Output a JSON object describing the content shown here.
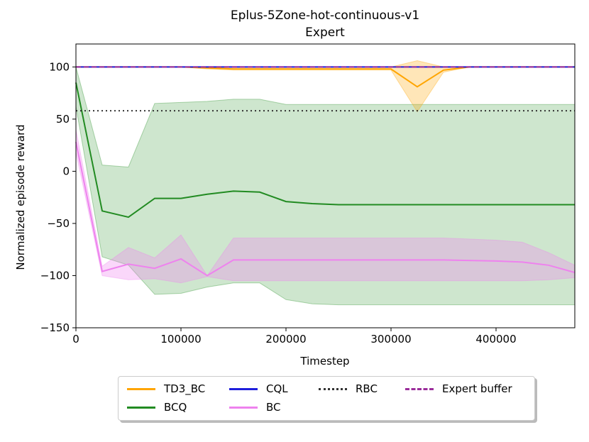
{
  "chart_data": {
    "type": "line",
    "title": "Eplus-5Zone-hot-continuous-v1",
    "subtitle": "Expert",
    "xlabel": "Timestep",
    "ylabel": "Normalized episode reward",
    "xlim": [
      0,
      475000
    ],
    "ylim": [
      -150,
      122
    ],
    "xticks": [
      0,
      100000,
      200000,
      300000,
      400000
    ],
    "xtick_labels": [
      "0",
      "100000",
      "200000",
      "300000",
      "400000"
    ],
    "yticks": [
      -150,
      -100,
      -50,
      0,
      50,
      100
    ],
    "ytick_labels": [
      "−150",
      "−100",
      "−50",
      "0",
      "50",
      "100"
    ],
    "grid": false,
    "legend_position": "bottom-center",
    "series": [
      {
        "name": "TD3_BC",
        "color": "#ffa500",
        "style": "solid",
        "x": [
          0,
          25000,
          50000,
          75000,
          100000,
          125000,
          150000,
          175000,
          200000,
          225000,
          250000,
          275000,
          300000,
          325000,
          350000,
          375000,
          400000,
          425000,
          450000,
          475000
        ],
        "y": [
          100,
          100,
          100,
          100,
          100,
          99,
          98,
          98,
          98,
          98,
          98,
          98,
          98,
          81,
          97,
          100,
          100,
          100,
          100,
          100
        ],
        "band_lower": [
          100,
          100,
          100,
          100,
          100,
          98,
          97,
          97,
          97,
          97,
          97,
          97,
          97,
          57,
          95,
          100,
          100,
          100,
          100,
          100
        ],
        "band_upper": [
          100,
          100,
          100,
          100,
          100,
          100,
          100,
          100,
          100,
          100,
          100,
          100,
          100,
          106,
          100,
          100,
          100,
          100,
          100,
          100
        ]
      },
      {
        "name": "CQL",
        "color": "#1f1fdc",
        "style": "solid",
        "x": [
          0,
          475000
        ],
        "y": [
          100,
          100
        ]
      },
      {
        "name": "RBC",
        "color": "#333333",
        "style": "dotted",
        "x": [
          0,
          475000
        ],
        "y": [
          58,
          58
        ]
      },
      {
        "name": "Expert buffer",
        "color": "#9b2d9b",
        "style": "dashed",
        "x": [
          0,
          475000
        ],
        "y": [
          100,
          100
        ]
      },
      {
        "name": "BCQ",
        "color": "#228b22",
        "style": "solid",
        "x": [
          0,
          25000,
          50000,
          75000,
          100000,
          125000,
          150000,
          175000,
          200000,
          225000,
          250000,
          300000,
          350000,
          400000,
          475000
        ],
        "y": [
          85,
          -38,
          -44,
          -26,
          -26,
          -22,
          -19,
          -20,
          -29,
          -31,
          -32,
          -32,
          -32,
          -32,
          -32
        ],
        "band_lower": [
          62,
          -82,
          -90,
          -118,
          -117,
          -111,
          -107,
          -107,
          -123,
          -127,
          -128,
          -128,
          -128,
          -128,
          -128
        ],
        "band_upper": [
          100,
          6,
          4,
          65,
          66,
          67,
          69,
          69,
          64,
          64,
          64,
          64,
          64,
          64,
          64
        ]
      },
      {
        "name": "BC",
        "color": "#ee82ee",
        "style": "solid",
        "x": [
          0,
          25000,
          50000,
          75000,
          100000,
          125000,
          150000,
          175000,
          200000,
          250000,
          300000,
          350000,
          400000,
          425000,
          450000,
          475000
        ],
        "y": [
          28,
          -96,
          -89,
          -93,
          -84,
          -100,
          -85,
          -85,
          -85,
          -85,
          -85,
          -85,
          -86,
          -87,
          -90,
          -97
        ],
        "band_lower": [
          18,
          -100,
          -104,
          -103,
          -107,
          -101,
          -105,
          -105,
          -105,
          -105,
          -105,
          -105,
          -105,
          -105,
          -104,
          -102
        ],
        "band_upper": [
          40,
          -91,
          -73,
          -83,
          -61,
          -100,
          -64,
          -64,
          -64,
          -64,
          -64,
          -64,
          -66,
          -68,
          -78,
          -90
        ]
      }
    ],
    "legend": {
      "items": [
        {
          "label": "TD3_BC",
          "color": "#ffa500",
          "style": "solid"
        },
        {
          "label": "CQL",
          "color": "#1f1fdc",
          "style": "solid"
        },
        {
          "label": "RBC",
          "color": "#333333",
          "style": "dotted"
        },
        {
          "label": "Expert buffer",
          "color": "#9b2d9b",
          "style": "dashed"
        },
        {
          "label": "BCQ",
          "color": "#228b22",
          "style": "solid"
        },
        {
          "label": "BC",
          "color": "#ee82ee",
          "style": "solid"
        }
      ]
    }
  }
}
